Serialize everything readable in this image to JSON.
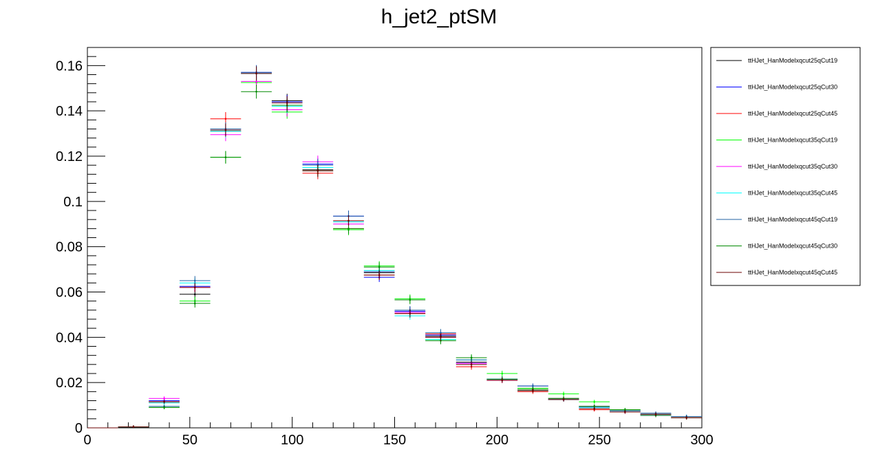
{
  "chart_data": {
    "type": "scatter",
    "title": "h_jet2_ptSM",
    "xlabel": "",
    "ylabel": "",
    "xlim": [
      0,
      300
    ],
    "ylim": [
      0,
      0.168
    ],
    "x_ticks": [
      0,
      50,
      100,
      150,
      200,
      250,
      300
    ],
    "x_tick_labels": [
      "0",
      "50",
      "100",
      "150",
      "200",
      "250",
      "300"
    ],
    "y_ticks": [
      0,
      0.02,
      0.04,
      0.06,
      0.08,
      0.1,
      0.12,
      0.14,
      0.16
    ],
    "y_tick_labels": [
      "0",
      "0.02",
      "0.04",
      "0.06",
      "0.08",
      "0.1",
      "0.12",
      "0.14",
      "0.16"
    ],
    "bin_width": 15,
    "x": [
      7.5,
      22.5,
      37.5,
      52.5,
      67.5,
      82.5,
      97.5,
      112.5,
      127.5,
      142.5,
      157.5,
      172.5,
      187.5,
      202.5,
      217.5,
      232.5,
      247.5,
      262.5,
      277.5,
      292.5
    ],
    "legend_position": "right",
    "grid": false,
    "series": [
      {
        "name": "ttHJet_HanModelxqcut25qCut19",
        "color": "#000000",
        "values": [
          0,
          0.0004,
          0.0115,
          0.059,
          0.131,
          0.1565,
          0.1445,
          0.114,
          0.0875,
          0.0685,
          0.0515,
          0.0405,
          0.029,
          0.0215,
          0.0165,
          0.013,
          0.0095,
          0.0075,
          0.006,
          0.0045
        ]
      },
      {
        "name": "ttHJet_HanModelxqcut25qCut30",
        "color": "#0000ff",
        "values": [
          0,
          0.0004,
          0.012,
          0.0625,
          0.132,
          0.157,
          0.144,
          0.1165,
          0.0935,
          0.0665,
          0.0515,
          0.041,
          0.0285,
          0.0215,
          0.0185,
          0.0125,
          0.009,
          0.0075,
          0.0055,
          0.005
        ]
      },
      {
        "name": "ttHJet_HanModelxqcut25qCut45",
        "color": "#ff0000",
        "values": [
          0,
          0.0004,
          0.0115,
          0.062,
          0.1365,
          0.1525,
          0.1405,
          0.1125,
          0.088,
          0.0675,
          0.0505,
          0.0415,
          0.027,
          0.021,
          0.016,
          0.0125,
          0.008,
          0.0075,
          0.006,
          0.0045
        ]
      },
      {
        "name": "ttHJet_HanModelxqcut35qCut19",
        "color": "#00ff00",
        "values": [
          0,
          0.0004,
          0.009,
          0.056,
          0.1195,
          0.1525,
          0.1395,
          0.115,
          0.0875,
          0.0715,
          0.057,
          0.039,
          0.031,
          0.024,
          0.0175,
          0.015,
          0.0115,
          0.008,
          0.006,
          0.0045
        ]
      },
      {
        "name": "ttHJet_HanModelxqcut35qCut30",
        "color": "#ff00ff",
        "values": [
          0,
          0.0004,
          0.013,
          0.062,
          0.1295,
          0.153,
          0.1405,
          0.1175,
          0.09,
          0.069,
          0.051,
          0.04,
          0.0285,
          0.021,
          0.017,
          0.0125,
          0.009,
          0.007,
          0.006,
          0.0045
        ]
      },
      {
        "name": "ttHJet_HanModelxqcut35qCut45",
        "color": "#00ffff",
        "values": [
          0,
          0.0004,
          0.011,
          0.064,
          0.131,
          0.1565,
          0.142,
          0.115,
          0.091,
          0.0695,
          0.0495,
          0.039,
          0.03,
          0.0215,
          0.0165,
          0.0125,
          0.009,
          0.0075,
          0.006,
          0.005
        ]
      },
      {
        "name": "ttHJet_HanModelxqcut45qCut19",
        "color": "#1f5fa0",
        "values": [
          0,
          0.0004,
          0.0095,
          0.065,
          0.132,
          0.157,
          0.1425,
          0.116,
          0.0935,
          0.069,
          0.052,
          0.042,
          0.03,
          0.0215,
          0.0185,
          0.0125,
          0.0095,
          0.0075,
          0.0065,
          0.005
        ]
      },
      {
        "name": "ttHJet_HanModelxqcut45qCut30",
        "color": "#008800",
        "values": [
          0,
          0.0004,
          0.009,
          0.055,
          0.1195,
          0.1485,
          0.1425,
          0.1135,
          0.088,
          0.071,
          0.0565,
          0.0385,
          0.031,
          0.0215,
          0.017,
          0.013,
          0.0095,
          0.008,
          0.0055,
          0.0045
        ]
      },
      {
        "name": "ttHJet_HanModelxqcut45qCut45",
        "color": "#6b0000",
        "values": [
          0,
          0.0004,
          0.0115,
          0.062,
          0.1315,
          0.1565,
          0.1435,
          0.1135,
          0.0915,
          0.0675,
          0.0505,
          0.04,
          0.028,
          0.021,
          0.0165,
          0.0125,
          0.0085,
          0.007,
          0.006,
          0.0045
        ]
      }
    ]
  }
}
